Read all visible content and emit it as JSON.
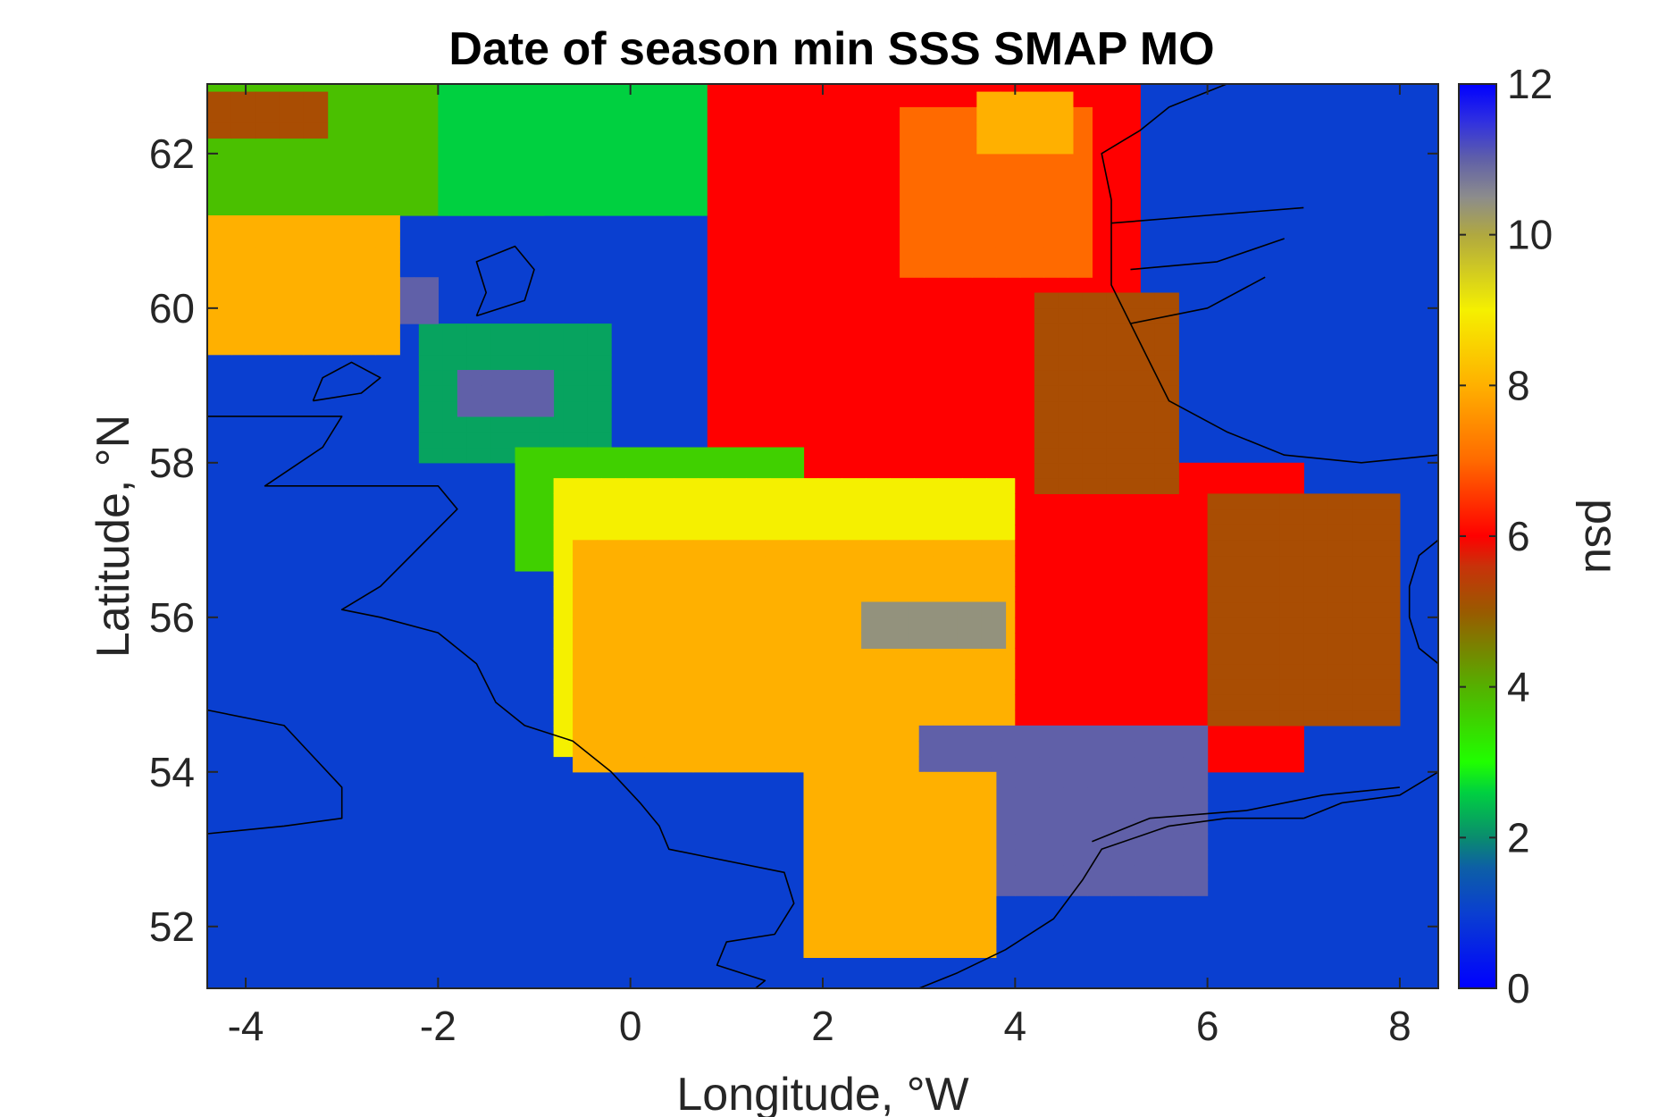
{
  "chart_data": {
    "type": "heatmap",
    "title": "Date of season min SSS SMAP MO",
    "xlabel": "Longitude, °W",
    "ylabel": "Latitude, °N",
    "xlim": [
      -4.4,
      8.4
    ],
    "ylim": [
      51.2,
      62.9
    ],
    "xticks": [
      -4,
      -2,
      0,
      2,
      4,
      6,
      8
    ],
    "xtick_labels": [
      "-4",
      "-2",
      "0",
      "2",
      "4",
      "6",
      "8"
    ],
    "yticks": [
      52,
      54,
      56,
      58,
      60,
      62
    ],
    "ytick_labels": [
      "52",
      "54",
      "56",
      "58",
      "60",
      "62"
    ],
    "grid": false,
    "colorbar": {
      "label": "psu",
      "range": [
        0,
        12
      ],
      "ticks": [
        0,
        2,
        4,
        6,
        8,
        10,
        12
      ],
      "tick_labels": [
        "0",
        "2",
        "4",
        "6",
        "8",
        "10",
        "12"
      ],
      "colormap": [
        "#0000ff",
        "#0a3fd0",
        "#0d5fa6",
        "#0a8c6e",
        "#00d040",
        "#20ff00",
        "#55b000",
        "#9a5a00",
        "#c8320a",
        "#ff0000",
        "#ff6a00",
        "#ffb000",
        "#f5f000",
        "#b0a840",
        "#8c8c8c",
        "#6060a8",
        "#3030e0",
        "#0000ff"
      ],
      "colorbar_stops": [
        0,
        1,
        1.6,
        2,
        2.6,
        3,
        4,
        5,
        5.6,
        6,
        7,
        8,
        9,
        10,
        10.5,
        11,
        11.5,
        12
      ]
    },
    "background_value": 1,
    "cell_size_deg": [
      0.25,
      0.2
    ],
    "regions": [
      {
        "name": "northwest",
        "value": 3.8,
        "lon": [
          -4.4,
          -1.0
        ],
        "lat": [
          61.2,
          62.9
        ]
      },
      {
        "name": "nw-brown",
        "value": 5.2,
        "lon": [
          -4.4,
          -3.2
        ],
        "lat": [
          62.2,
          62.8
        ]
      },
      {
        "name": "shetland-green",
        "value": 2.6,
        "lon": [
          -2.0,
          1.4
        ],
        "lat": [
          61.2,
          62.9
        ]
      },
      {
        "name": "north-red",
        "value": 6.0,
        "lon": [
          0.8,
          5.2
        ],
        "lat": [
          57.6,
          62.9
        ]
      },
      {
        "name": "north-orange",
        "value": 7.0,
        "lon": [
          2.8,
          4.8
        ],
        "lat": [
          60.4,
          62.6
        ]
      },
      {
        "name": "amber-strip",
        "value": 8.0,
        "lon": [
          3.6,
          4.6
        ],
        "lat": [
          62.0,
          62.7
        ]
      },
      {
        "name": "fair-isle",
        "value": 2.2,
        "lon": [
          -2.2,
          -0.4
        ],
        "lat": [
          58.0,
          59.8
        ]
      },
      {
        "name": "moray-purple",
        "value": 11.0,
        "lon": [
          -1.8,
          -0.8
        ],
        "lat": [
          58.6,
          59.2
        ]
      },
      {
        "name": "orkney-violet",
        "value": 11.0,
        "lon": [
          -3.0,
          -2.2
        ],
        "lat": [
          59.8,
          60.4
        ]
      },
      {
        "name": "west-patch",
        "value": 8.0,
        "lon": [
          -4.4,
          -2.4
        ],
        "lat": [
          59.4,
          61.2
        ]
      },
      {
        "name": "central-green",
        "value": 3.6,
        "lon": [
          -1.2,
          1.6
        ],
        "lat": [
          56.6,
          58.2
        ]
      },
      {
        "name": "central-yellow",
        "value": 9.0,
        "lon": [
          -0.8,
          4.0
        ],
        "lat": [
          54.2,
          57.8
        ]
      },
      {
        "name": "central-amber",
        "value": 8.0,
        "lon": [
          -0.6,
          5.0
        ],
        "lat": [
          54.0,
          57.0
        ]
      },
      {
        "name": "east-red",
        "value": 6.0,
        "lon": [
          4.0,
          6.8
        ],
        "lat": [
          54.0,
          58.0
        ]
      },
      {
        "name": "skagerrak-brown",
        "value": 5.2,
        "lon": [
          6.0,
          8.0
        ],
        "lat": [
          54.6,
          57.6
        ]
      },
      {
        "name": "german-bight-violet",
        "value": 11.0,
        "lon": [
          3.0,
          6.0
        ],
        "lat": [
          52.4,
          54.6
        ]
      },
      {
        "name": "dogger-grey",
        "value": 10.4,
        "lon": [
          2.4,
          3.8
        ],
        "lat": [
          55.6,
          56.2
        ]
      },
      {
        "name": "southern-amber",
        "value": 8.0,
        "lon": [
          1.8,
          3.6
        ],
        "lat": [
          51.6,
          54.0
        ]
      },
      {
        "name": "norway-brown",
        "value": 5.2,
        "lon": [
          4.2,
          5.6
        ],
        "lat": [
          57.6,
          60.2
        ]
      }
    ],
    "coastlines": [
      "Scotland",
      "England",
      "Norway",
      "Denmark",
      "Netherlands",
      "Germany",
      "Orkney",
      "Shetland"
    ]
  }
}
